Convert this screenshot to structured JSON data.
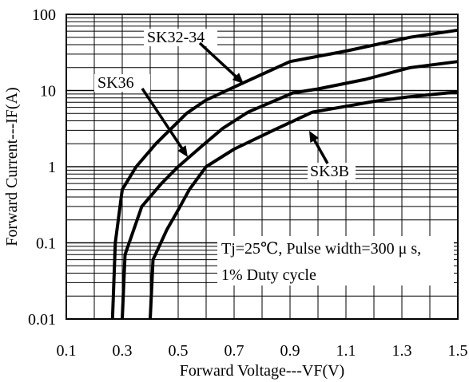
{
  "chart_data": {
    "type": "line",
    "xlabel": "Forward Voltage---VF(V)",
    "ylabel": "Forward Current---IF(A)",
    "xlim": [
      0.1,
      1.5
    ],
    "ylim": [
      0.01,
      100
    ],
    "yscale": "log",
    "grid": true,
    "x_ticks": [
      "0.1",
      "0.3",
      "0.5",
      "0.7",
      "0.9",
      "1.1",
      "1.3",
      "1.5"
    ],
    "y_ticks": [
      "0.01",
      "0.1",
      "1",
      "10",
      "100"
    ],
    "series": [
      {
        "name": "SK32-34",
        "points": [
          [
            0.265,
            0.01
          ],
          [
            0.275,
            0.1
          ],
          [
            0.3,
            0.5
          ],
          [
            0.35,
            1.0
          ],
          [
            0.42,
            2.0
          ],
          [
            0.53,
            5.0
          ],
          [
            0.6,
            7.5
          ],
          [
            0.72,
            12.0
          ],
          [
            0.9,
            24.0
          ],
          [
            1.1,
            33.0
          ],
          [
            1.33,
            50.0
          ],
          [
            1.5,
            62.0
          ]
        ]
      },
      {
        "name": "SK36",
        "points": [
          [
            0.3,
            0.01
          ],
          [
            0.31,
            0.07
          ],
          [
            0.37,
            0.3
          ],
          [
            0.44,
            0.6
          ],
          [
            0.5,
            1.0
          ],
          [
            0.58,
            1.8
          ],
          [
            0.66,
            3.2
          ],
          [
            0.75,
            5.2
          ],
          [
            0.91,
            9.3
          ],
          [
            1.0,
            10.5
          ],
          [
            1.17,
            14.0
          ],
          [
            1.33,
            20.0
          ],
          [
            1.5,
            24.0
          ]
        ]
      },
      {
        "name": "SK3B",
        "points": [
          [
            0.4,
            0.01
          ],
          [
            0.41,
            0.06
          ],
          [
            0.46,
            0.15
          ],
          [
            0.5,
            0.27
          ],
          [
            0.54,
            0.5
          ],
          [
            0.6,
            1.0
          ],
          [
            0.7,
            1.7
          ],
          [
            0.84,
            3.0
          ],
          [
            0.98,
            5.2
          ],
          [
            1.1,
            6.2
          ],
          [
            1.2,
            7.2
          ],
          [
            1.33,
            8.3
          ],
          [
            1.5,
            9.6
          ]
        ]
      }
    ],
    "annotations": [
      {
        "text": "SK32-34"
      },
      {
        "text": "SK36"
      },
      {
        "text": "SK3B"
      },
      {
        "text": "Tj=25℃, Pulse width=300 μ s,"
      },
      {
        "text": "1% Duty cycle"
      }
    ]
  }
}
